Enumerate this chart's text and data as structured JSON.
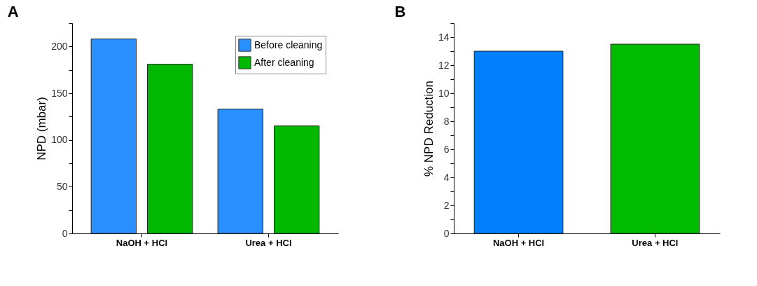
{
  "chart_data": [
    {
      "type": "bar",
      "title": "A",
      "ylabel": "NPD (mbar)",
      "categories": [
        "NaOH + HCl",
        "Urea + HCl"
      ],
      "series": [
        {
          "name": "Before cleaning",
          "color": "#2b90ff",
          "values": [
            208,
            133
          ]
        },
        {
          "name": "After cleaning",
          "color": "#00b800",
          "values": [
            181,
            115
          ]
        }
      ],
      "ylim": [
        0,
        225
      ],
      "yticks": [
        0,
        {
          "value": 25,
          "label": null
        },
        50,
        {
          "value": 75,
          "label": null
        },
        100,
        {
          "value": 125,
          "label": null
        },
        150,
        {
          "value": 175,
          "label": null
        },
        200,
        {
          "value": 225,
          "label": null
        }
      ],
      "grid": false,
      "legend": "top right"
    },
    {
      "type": "bar",
      "title": "B",
      "ylabel": "% NPD Reduction",
      "categories": [
        "NaOH + HCl",
        "Urea + HCl"
      ],
      "values": [
        13.0,
        13.5
      ],
      "colors": [
        "#0080ff",
        "#00bb00"
      ],
      "ylim": [
        0,
        15
      ],
      "yticks": [
        0,
        {
          "value": 1,
          "label": null
        },
        2,
        {
          "value": 3,
          "label": null
        },
        4,
        {
          "value": 5,
          "label": null
        },
        6,
        {
          "value": 7,
          "label": null
        },
        8,
        {
          "value": 9,
          "label": null
        },
        10,
        {
          "value": 11,
          "label": null
        },
        12,
        {
          "value": 13,
          "label": null
        },
        14,
        {
          "value": 15,
          "label": null
        }
      ],
      "grid": false
    }
  ]
}
